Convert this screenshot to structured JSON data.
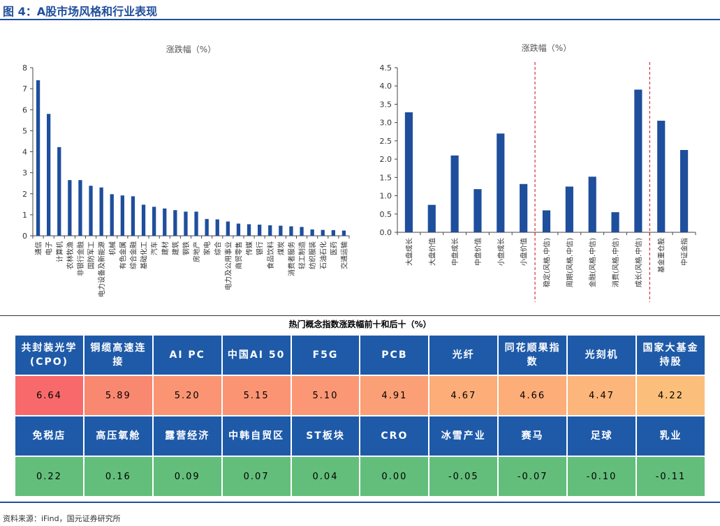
{
  "figure_title": "图 4：A股市场风格和行业表现",
  "chart_data": [
    {
      "type": "bar",
      "title": "涨跌幅（%）",
      "categories": [
        "通信",
        "电子",
        "计算机",
        "农林牧渔",
        "非银行金融",
        "国防军工",
        "电力设备及新能源",
        "机械",
        "有色金属",
        "综合金融",
        "基础化工",
        "汽车",
        "建材",
        "建筑",
        "钢铁",
        "房地产",
        "家电",
        "综合",
        "电力及公用事业",
        "商贸零售",
        "传媒",
        "银行",
        "食品饮料",
        "煤炭",
        "消费者服务",
        "轻工制造",
        "纺织服装",
        "石油石化",
        "医药",
        "交通运输"
      ],
      "values": [
        7.4,
        5.8,
        4.22,
        2.65,
        2.65,
        2.38,
        2.3,
        1.98,
        1.92,
        1.88,
        1.48,
        1.38,
        1.3,
        1.22,
        1.15,
        1.15,
        0.8,
        0.78,
        0.68,
        0.58,
        0.55,
        0.53,
        0.5,
        0.48,
        0.45,
        0.42,
        0.3,
        0.28,
        0.27,
        0.25
      ],
      "ylim": [
        0,
        8
      ],
      "yticks": [
        0,
        1,
        2,
        3,
        4,
        5,
        6,
        7,
        8
      ],
      "color": "#1f4e9c"
    },
    {
      "type": "bar",
      "title": "涨跌幅（%）",
      "categories": [
        "大盘成长",
        "大盘价值",
        "中盘成长",
        "中盘价值",
        "小盘成长",
        "小盘价值",
        "稳定(风格.中信)",
        "周期(风格.中信)",
        "金融(风格.中信)",
        "消费(风格.中信)",
        "成长(风格.中信)",
        "基金重仓股",
        "中证金指"
      ],
      "values": [
        3.28,
        0.75,
        2.1,
        1.18,
        2.7,
        1.32,
        0.6,
        1.25,
        1.52,
        0.55,
        3.9,
        3.05,
        2.25
      ],
      "ylim": [
        0,
        4.5
      ],
      "yticks": [
        "0.0",
        "0.5",
        "1.0",
        "1.5",
        "2.0",
        "2.5",
        "3.0",
        "3.5",
        "4.0",
        "4.5"
      ],
      "separators_after_index": [
        5,
        10
      ],
      "color": "#1f4e9c",
      "separator_color": "#d0021b"
    }
  ],
  "concept_table": {
    "title": "热门概念指数涨跌幅前十和后十（%）",
    "top_names": [
      "共封装光学(CPO)",
      "铜缆高速连接",
      "AI PC",
      "中国AI 50",
      "F5G",
      "PCB",
      "光纤",
      "同花顺果指数",
      "光刻机",
      "国家大基金持股"
    ],
    "top_values": [
      "6.64",
      "5.89",
      "5.20",
      "5.15",
      "5.10",
      "4.91",
      "4.67",
      "4.66",
      "4.47",
      "4.22"
    ],
    "top_colors": [
      "#f8696b",
      "#f98870",
      "#fa9473",
      "#fa9473",
      "#fb9774",
      "#fba076",
      "#fcad78",
      "#fcad78",
      "#fcb57a",
      "#fcbf7b"
    ],
    "bottom_names": [
      "免税店",
      "高压氧舱",
      "露营经济",
      "中韩自贸区",
      "ST板块",
      "CRO",
      "冰雪产业",
      "赛马",
      "足球",
      "乳业"
    ],
    "bottom_values": [
      "0.22",
      "0.16",
      "0.09",
      "0.07",
      "0.04",
      "0.00",
      "-0.05",
      "-0.07",
      "-0.10",
      "-0.11"
    ],
    "bottom_color": "#63be7b"
  },
  "source": "资料来源：iFind，国元证券研究所"
}
